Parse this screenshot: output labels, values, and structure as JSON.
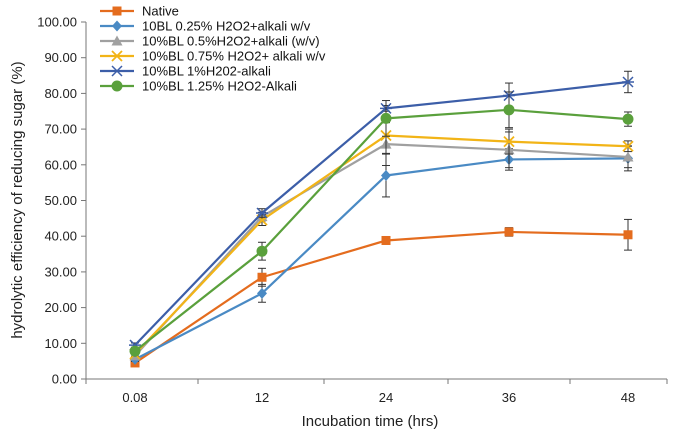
{
  "chart_data": {
    "type": "line",
    "title": "",
    "xlabel": "Incubation time (hrs)",
    "ylabel": "hydrolytic efficiency of reducing sugar  (%)",
    "categories": [
      "0.08",
      "12",
      "24",
      "36",
      "48"
    ],
    "ylim": [
      0,
      100
    ],
    "yticks": [
      "0.00",
      "10.00",
      "20.00",
      "30.00",
      "40.00",
      "50.00",
      "60.00",
      "70.00",
      "80.00",
      "90.00",
      "100.00"
    ],
    "grid": false,
    "legend_position": "top-left",
    "series": [
      {
        "name": "Native",
        "color": "#e46c1e",
        "marker": "square",
        "values": [
          4.5,
          28.5,
          38.8,
          41.2,
          40.4
        ],
        "errors": [
          0.6,
          2.5,
          0.8,
          1.2,
          4.3
        ]
      },
      {
        "name": "10BL 0.25% H2O2+alkali w/v",
        "color": "#4a8ac4",
        "marker": "diamond",
        "values": [
          5.5,
          24.0,
          57.0,
          61.5,
          61.8
        ],
        "errors": [
          0.6,
          2.5,
          6.0,
          3.0,
          3.5
        ]
      },
      {
        "name": "10%BL 0.5%H2O2+alkali (w/v)",
        "color": "#a0a0a0",
        "marker": "triangle",
        "values": [
          6.5,
          45.5,
          65.8,
          64.2,
          62.2
        ],
        "errors": [
          0.6,
          1.2,
          6.0,
          5.0,
          3.0
        ]
      },
      {
        "name": "10%BL 0.75% H2O2+ alkali w/v",
        "color": "#f2b417",
        "marker": "x",
        "values": [
          7.0,
          44.5,
          68.2,
          66.5,
          65.2
        ],
        "errors": [
          0.6,
          1.5,
          5.0,
          3.5,
          1.5
        ]
      },
      {
        "name": "10%BL 1%H202-alkali",
        "color": "#3c5ea8",
        "marker": "star",
        "values": [
          9.5,
          46.5,
          75.8,
          79.4,
          83.2
        ],
        "errors": [
          0.6,
          1.2,
          0.8,
          3.5,
          3.0
        ]
      },
      {
        "name": "10%BL 1.25% H2O2-Alkali",
        "color": "#5aa03c",
        "marker": "circle",
        "values": [
          7.8,
          35.8,
          73.0,
          75.4,
          72.8
        ],
        "errors": [
          0.6,
          2.5,
          5.0,
          5.0,
          2.0
        ]
      }
    ]
  }
}
